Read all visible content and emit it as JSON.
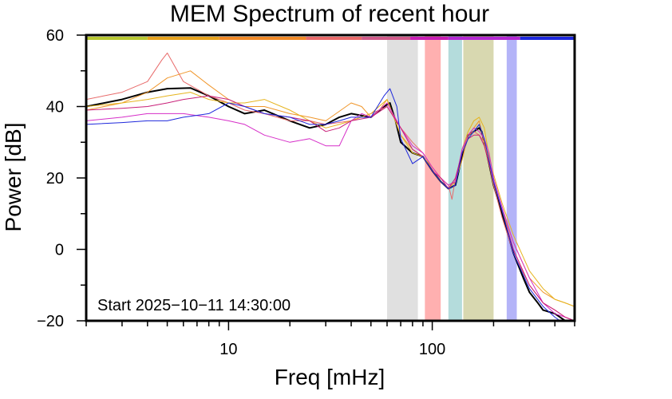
{
  "chart_data": {
    "type": "line",
    "title": "MEM Spectrum of recent hour",
    "xlabel": "Freq [mHz]",
    "ylabel": "Power [dB]",
    "x_scale": "log",
    "xlim": [
      2,
      500
    ],
    "ylim": [
      -20,
      60
    ],
    "x_ticks": [
      {
        "value": 10,
        "label": "10"
      },
      {
        "value": 100,
        "label": "100"
      }
    ],
    "y_ticks": [
      {
        "value": -20,
        "label": "−20"
      },
      {
        "value": 0,
        "label": "0"
      },
      {
        "value": 20,
        "label": "20"
      },
      {
        "value": 40,
        "label": "40"
      },
      {
        "value": 60,
        "label": "60"
      }
    ],
    "annotation": "Start 2025−10−11 14:30:00",
    "grid": false,
    "top_color_bar": [
      {
        "from": 2,
        "to": 4,
        "color": "#b8c832"
      },
      {
        "from": 4,
        "to": 9,
        "color": "#e6a21e"
      },
      {
        "from": 9,
        "to": 24,
        "color": "#f08a28"
      },
      {
        "from": 24,
        "to": 45,
        "color": "#e86a6a"
      },
      {
        "from": 45,
        "to": 78,
        "color": "#d05a8a"
      },
      {
        "from": 78,
        "to": 120,
        "color": "#c81eb4"
      },
      {
        "from": 120,
        "to": 270,
        "color": "#b428d2"
      },
      {
        "from": 270,
        "to": 500,
        "color": "#1e28dc"
      }
    ],
    "bands": [
      {
        "from": 60,
        "to": 85,
        "color": "#e0e0e0"
      },
      {
        "from": 92,
        "to": 110,
        "color": "#ffb0b0"
      },
      {
        "from": 120,
        "to": 140,
        "color": "#b4dcdc"
      },
      {
        "from": 142,
        "to": 200,
        "color": "#d8d8b0"
      },
      {
        "from": 232,
        "to": 260,
        "color": "#b4b4f8"
      }
    ],
    "series": [
      {
        "color": "#000000",
        "width": 2,
        "x": [
          2,
          3,
          4,
          5,
          6.5,
          8,
          10,
          12,
          15,
          20,
          25,
          30,
          35,
          40,
          50,
          58,
          62,
          66,
          70,
          80,
          90,
          100,
          110,
          120,
          130,
          140,
          150,
          160,
          170,
          175,
          180,
          190,
          200,
          220,
          250,
          280,
          300,
          330,
          350,
          400,
          450,
          500
        ],
        "y": [
          40,
          42,
          44,
          45,
          45.2,
          43,
          40,
          38,
          39,
          36,
          34,
          35,
          37,
          38,
          37,
          40,
          41,
          36,
          30,
          27,
          26,
          22,
          19,
          17,
          18,
          26,
          32,
          33,
          34,
          33,
          30,
          24,
          18,
          10,
          -1,
          -8,
          -12,
          -15,
          -17,
          -18,
          -20,
          -21
        ]
      },
      {
        "color": "#e86a6a",
        "width": 1,
        "x": [
          2,
          3,
          4,
          4.7,
          5,
          6,
          8,
          10,
          12,
          15,
          20,
          25,
          30,
          40,
          50,
          60,
          70,
          80,
          90,
          100,
          110,
          120,
          125,
          130,
          140,
          150,
          160,
          170,
          180,
          190,
          200,
          220,
          250,
          300,
          350,
          400,
          450,
          500
        ],
        "y": [
          42,
          44,
          47,
          53,
          55,
          47,
          43,
          41,
          39,
          38,
          36,
          36,
          35,
          36,
          38,
          40,
          34,
          30,
          27,
          23,
          20,
          18,
          14,
          20,
          27,
          32,
          33,
          32,
          30,
          24,
          18,
          9,
          -1,
          -10,
          -15,
          -17,
          -19,
          -20
        ]
      },
      {
        "color": "#f0962a",
        "width": 1,
        "x": [
          2,
          3,
          4,
          5,
          6.5,
          8,
          10,
          12,
          15,
          20,
          25,
          30,
          40,
          45,
          50,
          55,
          60,
          70,
          80,
          90,
          100,
          110,
          120,
          130,
          140,
          150,
          160,
          170,
          180,
          190,
          200,
          220,
          250,
          300,
          350,
          400,
          450,
          500
        ],
        "y": [
          39,
          41,
          44,
          48,
          50,
          46,
          42,
          40,
          40,
          38,
          37,
          36,
          41,
          40,
          37,
          39,
          42,
          32,
          28,
          26,
          22,
          19,
          17,
          19,
          25,
          32,
          34,
          36,
          30,
          24,
          19,
          11,
          2,
          -8,
          -12,
          -14,
          -15,
          -16
        ]
      },
      {
        "color": "#e6b41e",
        "width": 1,
        "x": [
          2,
          3,
          4,
          5,
          6.5,
          8,
          10,
          12,
          15,
          20,
          25,
          30,
          35,
          40,
          50,
          60,
          70,
          80,
          90,
          100,
          110,
          120,
          130,
          140,
          150,
          160,
          170,
          180,
          190,
          200,
          220,
          250,
          300,
          350,
          400,
          450,
          500
        ],
        "y": [
          40,
          41,
          42,
          43,
          44,
          42,
          41,
          41,
          42,
          39,
          36,
          34,
          35,
          36,
          38,
          42,
          32,
          27,
          26,
          23,
          20,
          18,
          19,
          28,
          33,
          36,
          37,
          34,
          26,
          21,
          13,
          4,
          -6,
          -11,
          -14,
          -15,
          -16
        ]
      },
      {
        "color": "#d62ec8",
        "width": 1,
        "x": [
          2,
          3,
          4,
          5,
          6,
          8,
          10,
          12,
          15,
          20,
          25,
          30,
          35,
          40,
          45,
          50,
          60,
          70,
          80,
          90,
          100,
          110,
          120,
          130,
          140,
          150,
          160,
          170,
          180,
          190,
          200,
          220,
          250,
          300,
          350,
          400,
          450,
          500
        ],
        "y": [
          36,
          37,
          38,
          38,
          38,
          37,
          36,
          35,
          32,
          30,
          31,
          29,
          29,
          36,
          38,
          37,
          41,
          34,
          29,
          27,
          23,
          20,
          18,
          19,
          28,
          32,
          34,
          33,
          31,
          27,
          20,
          12,
          2,
          -8,
          -15,
          -18,
          -19,
          -20
        ]
      },
      {
        "color": "#c81e78",
        "width": 1,
        "x": [
          2,
          3,
          4,
          5,
          6,
          8,
          10,
          12,
          15,
          20,
          25,
          30,
          35,
          40,
          50,
          60,
          70,
          80,
          90,
          100,
          110,
          120,
          130,
          140,
          150,
          160,
          170,
          180,
          190,
          200,
          220,
          250,
          300,
          350,
          400,
          450,
          500
        ],
        "y": [
          39,
          39.5,
          40,
          41,
          42,
          43,
          42,
          40,
          38,
          37,
          36,
          33,
          34,
          36,
          37,
          40,
          34,
          28,
          26,
          22,
          20,
          17,
          20,
          27,
          31,
          32,
          32,
          29,
          24,
          19,
          11,
          0,
          -10,
          -15,
          -17,
          -19,
          -20
        ]
      },
      {
        "color": "#1e28dc",
        "width": 1,
        "x": [
          2,
          3,
          4,
          5,
          6,
          8,
          10,
          12,
          15,
          20,
          25,
          30,
          35,
          40,
          50,
          58,
          62,
          67,
          70,
          80,
          90,
          100,
          110,
          120,
          130,
          140,
          150,
          160,
          170,
          180,
          190,
          200,
          220,
          250,
          300,
          350,
          400,
          450,
          500
        ],
        "y": [
          35,
          35.5,
          36,
          36,
          37,
          38,
          41,
          40,
          38,
          37,
          35,
          35,
          36,
          37,
          37,
          43,
          45,
          40,
          31,
          24,
          26,
          22,
          19,
          17,
          18,
          27,
          31,
          33,
          35,
          31,
          25,
          19,
          11,
          -1,
          -11,
          -16,
          -19,
          -21,
          -22
        ]
      }
    ]
  }
}
